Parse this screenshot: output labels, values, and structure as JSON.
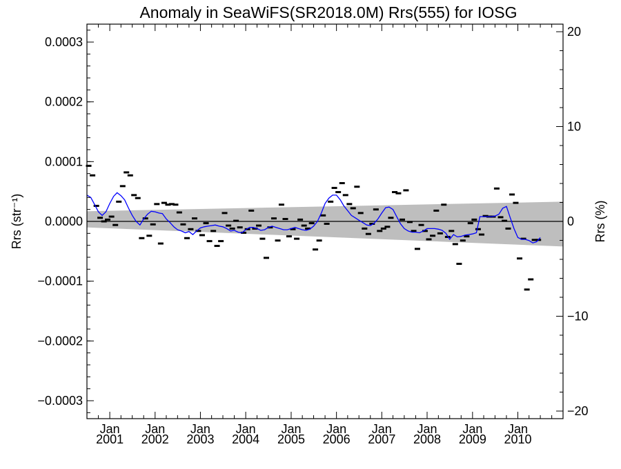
{
  "chart_data": {
    "type": "scatter",
    "title": "Anomaly in SeaWiFS(SR2018.0M) Rrs(555) for IOSG",
    "ylabel_left": "Rrs (str⁻¹)",
    "ylabel_right": "Rrs (%)",
    "xlabel": "",
    "xlim": [
      "2000-07-01",
      "2010-12-31"
    ],
    "ylim_left": [
      -0.00033,
      0.00033
    ],
    "ylim_right": [
      -20.8,
      20.8
    ],
    "x_ticks": [
      {
        "month": "Jan",
        "year": "2001",
        "date": "2001-01-01"
      },
      {
        "month": "Jan",
        "year": "2002",
        "date": "2002-01-01"
      },
      {
        "month": "Jan",
        "year": "2003",
        "date": "2003-01-01"
      },
      {
        "month": "Jan",
        "year": "2004",
        "date": "2004-01-01"
      },
      {
        "month": "Jan",
        "year": "2005",
        "date": "2005-01-01"
      },
      {
        "month": "Jan",
        "year": "2006",
        "date": "2006-01-01"
      },
      {
        "month": "Jan",
        "year": "2007",
        "date": "2007-01-01"
      },
      {
        "month": "Jan",
        "year": "2008",
        "date": "2008-01-01"
      },
      {
        "month": "Jan",
        "year": "2009",
        "date": "2009-01-01"
      },
      {
        "month": "Jan",
        "year": "2010",
        "date": "2010-01-01"
      }
    ],
    "y_ticks_left": [
      {
        "value": 0.0003,
        "label": "0.0003"
      },
      {
        "value": 0.0002,
        "label": "0.0002"
      },
      {
        "value": 0.0001,
        "label": "0.0001"
      },
      {
        "value": 0.0,
        "label": "0.0000"
      },
      {
        "value": -0.0001,
        "label": "−0.0001"
      },
      {
        "value": -0.0002,
        "label": "−0.0002"
      },
      {
        "value": -0.0003,
        "label": "−0.0003"
      }
    ],
    "y_ticks_right": [
      {
        "value": 20,
        "label": "20"
      },
      {
        "value": 10,
        "label": "10"
      },
      {
        "value": 0,
        "label": "0"
      },
      {
        "value": -10,
        "label": "−10"
      },
      {
        "value": -20,
        "label": "−20"
      }
    ],
    "trend_band": {
      "x": [
        "2000-07-01",
        "2010-12-31"
      ],
      "upper": [
        1.7e-05,
        3.3e-05
      ],
      "lower": [
        -1e-05,
        -4.2e-05
      ],
      "color": "#bebebe"
    },
    "zero_line": {
      "value": 0.0,
      "color": "#000000"
    },
    "series": [
      {
        "kind": "monthly_anomaly_markers",
        "color": "#000000",
        "points": [
          [
            "2000-07-15",
            9.3e-05
          ],
          [
            "2000-08-15",
            7.7e-05
          ],
          [
            "2000-09-15",
            2.6e-05
          ],
          [
            "2000-10-15",
            6e-06
          ],
          [
            "2000-11-15",
            0.0
          ],
          [
            "2000-12-15",
            3e-06
          ],
          [
            "2001-01-15",
            8e-06
          ],
          [
            "2001-02-15",
            -6e-06
          ],
          [
            "2001-03-15",
            3.3e-05
          ],
          [
            "2001-04-15",
            5.9e-05
          ],
          [
            "2001-05-15",
            8.2e-05
          ],
          [
            "2001-06-15",
            7.7e-05
          ],
          [
            "2001-07-15",
            4.4e-05
          ],
          [
            "2001-08-15",
            3.9e-05
          ],
          [
            "2001-09-15",
            -2.8e-05
          ],
          [
            "2001-10-15",
            5e-06
          ],
          [
            "2001-11-15",
            -2.4e-05
          ],
          [
            "2001-12-15",
            -5e-06
          ],
          [
            "2002-01-15",
            2.9e-05
          ],
          [
            "2002-02-15",
            -3.7e-05
          ],
          [
            "2002-03-15",
            3.1e-05
          ],
          [
            "2002-04-15",
            2.8e-05
          ],
          [
            "2002-05-15",
            2.9e-05
          ],
          [
            "2002-06-15",
            2.8e-05
          ],
          [
            "2002-07-15",
            1.5e-05
          ],
          [
            "2002-08-15",
            -5e-06
          ],
          [
            "2002-09-15",
            -2.8e-05
          ],
          [
            "2002-10-15",
            -1.3e-05
          ],
          [
            "2002-11-15",
            5e-06
          ],
          [
            "2002-12-15",
            -1.6e-05
          ],
          [
            "2003-01-15",
            -2.3e-05
          ],
          [
            "2003-02-15",
            -3e-06
          ],
          [
            "2003-03-15",
            -3.3e-05
          ],
          [
            "2003-04-15",
            -1.6e-05
          ],
          [
            "2003-05-15",
            -4.1e-05
          ],
          [
            "2003-06-15",
            -3.3e-05
          ],
          [
            "2003-07-15",
            1.4e-05
          ],
          [
            "2003-08-15",
            -7e-06
          ],
          [
            "2003-09-15",
            -1.2e-05
          ],
          [
            "2003-10-15",
            1e-06
          ],
          [
            "2003-11-15",
            -1e-05
          ],
          [
            "2003-12-15",
            -1.9e-05
          ],
          [
            "2004-01-15",
            -1.3e-05
          ],
          [
            "2004-02-15",
            1.8e-05
          ],
          [
            "2004-03-15",
            -1.2e-05
          ],
          [
            "2004-04-15",
            -7e-06
          ],
          [
            "2004-05-15",
            -2.9e-05
          ],
          [
            "2004-06-15",
            -6.1e-05
          ],
          [
            "2004-07-15",
            -1e-05
          ],
          [
            "2004-08-15",
            5e-06
          ],
          [
            "2004-09-15",
            -3.2e-05
          ],
          [
            "2004-10-15",
            2.8e-05
          ],
          [
            "2004-11-15",
            4e-06
          ],
          [
            "2004-12-15",
            -2.5e-05
          ],
          [
            "2005-01-15",
            -1.3e-05
          ],
          [
            "2005-02-15",
            -2.9e-05
          ],
          [
            "2005-03-15",
            3e-06
          ],
          [
            "2005-04-15",
            -7e-06
          ],
          [
            "2005-05-15",
            -1.2e-05
          ],
          [
            "2005-06-15",
            -3e-06
          ],
          [
            "2005-07-15",
            -4.7e-05
          ],
          [
            "2005-08-15",
            -3.2e-05
          ],
          [
            "2005-09-15",
            1e-05
          ],
          [
            "2005-10-15",
            -4e-06
          ],
          [
            "2005-11-15",
            3.3e-05
          ],
          [
            "2005-12-15",
            5.6e-05
          ],
          [
            "2006-01-15",
            4.9e-05
          ],
          [
            "2006-02-15",
            6.4e-05
          ],
          [
            "2006-03-15",
            4.4e-05
          ],
          [
            "2006-04-15",
            2.9e-05
          ],
          [
            "2006-05-15",
            2.2e-05
          ],
          [
            "2006-06-15",
            5.8e-05
          ],
          [
            "2006-07-15",
            1.4e-05
          ],
          [
            "2006-08-15",
            -1.2e-05
          ],
          [
            "2006-09-15",
            -2.1e-05
          ],
          [
            "2006-10-15",
            -4e-06
          ],
          [
            "2006-11-15",
            2e-05
          ],
          [
            "2006-12-15",
            -1.6e-05
          ],
          [
            "2007-01-15",
            -1.2e-05
          ],
          [
            "2007-02-15",
            -9e-06
          ],
          [
            "2007-03-15",
            6e-06
          ],
          [
            "2007-04-15",
            4.9e-05
          ],
          [
            "2007-05-15",
            4.7e-05
          ],
          [
            "2007-06-15",
            3e-06
          ],
          [
            "2007-07-15",
            5.2e-05
          ],
          [
            "2007-08-15",
            -1e-06
          ],
          [
            "2007-09-15",
            -1.6e-05
          ],
          [
            "2007-10-15",
            -4.6e-05
          ],
          [
            "2007-11-15",
            -6e-06
          ],
          [
            "2007-12-15",
            -1.6e-05
          ],
          [
            "2008-01-15",
            -3e-05
          ],
          [
            "2008-02-15",
            -2.4e-05
          ],
          [
            "2008-03-15",
            1.8e-05
          ],
          [
            "2008-04-15",
            -2e-05
          ],
          [
            "2008-05-15",
            2.8e-05
          ],
          [
            "2008-06-15",
            -2.6e-05
          ],
          [
            "2008-07-15",
            -1.6e-05
          ],
          [
            "2008-08-15",
            -3.8e-05
          ],
          [
            "2008-09-15",
            -7.1e-05
          ],
          [
            "2008-10-15",
            -3.2e-05
          ],
          [
            "2008-11-15",
            -2.5e-05
          ],
          [
            "2008-12-15",
            -3e-06
          ],
          [
            "2009-01-15",
            3e-06
          ],
          [
            "2009-02-15",
            -1.3e-05
          ],
          [
            "2009-03-15",
            -2.2e-05
          ],
          [
            "2009-04-15",
            9e-06
          ],
          [
            "2009-05-15",
            8e-06
          ],
          [
            "2009-06-15",
            8e-06
          ],
          [
            "2009-07-15",
            5.5e-05
          ],
          [
            "2009-08-15",
            7e-06
          ],
          [
            "2009-09-15",
            1e-06
          ],
          [
            "2009-10-15",
            -1.2e-05
          ],
          [
            "2009-11-15",
            4.5e-05
          ],
          [
            "2009-12-15",
            3.1e-05
          ],
          [
            "2010-01-15",
            -6.2e-05
          ],
          [
            "2010-02-15",
            -2.9e-05
          ],
          [
            "2010-03-15",
            -0.000114
          ],
          [
            "2010-04-15",
            -9.7e-05
          ],
          [
            "2010-05-15",
            -3.1e-05
          ],
          [
            "2010-06-15",
            -3.1e-05
          ]
        ]
      },
      {
        "kind": "smoothed_anomaly_line",
        "color": "#0000ff",
        "points": [
          [
            "2000-07-01",
            4.4e-05
          ],
          [
            "2000-08-01",
            4e-05
          ],
          [
            "2000-09-01",
            2.8e-05
          ],
          [
            "2000-10-01",
            1.6e-05
          ],
          [
            "2000-11-01",
            1e-05
          ],
          [
            "2000-12-01",
            1.6e-05
          ],
          [
            "2001-01-01",
            3e-05
          ],
          [
            "2001-02-01",
            4.2e-05
          ],
          [
            "2001-03-01",
            4.8e-05
          ],
          [
            "2001-04-01",
            4.3e-05
          ],
          [
            "2001-05-01",
            3.6e-05
          ],
          [
            "2001-06-01",
            2.2e-05
          ],
          [
            "2001-07-01",
            1e-05
          ],
          [
            "2001-08-01",
            0.0
          ],
          [
            "2001-09-01",
            -6e-06
          ],
          [
            "2001-10-01",
            4e-06
          ],
          [
            "2001-11-01",
            1.2e-05
          ],
          [
            "2001-12-01",
            1.7e-05
          ],
          [
            "2002-01-01",
            1.6e-05
          ],
          [
            "2002-02-01",
            1.4e-05
          ],
          [
            "2002-03-01",
            1.3e-05
          ],
          [
            "2002-04-01",
            4e-06
          ],
          [
            "2002-05-01",
            -2e-06
          ],
          [
            "2002-06-01",
            -9e-06
          ],
          [
            "2002-07-01",
            -1.4e-05
          ],
          [
            "2002-08-01",
            -1.6e-05
          ],
          [
            "2002-09-01",
            -1.9e-05
          ],
          [
            "2002-10-01",
            -1.7e-05
          ],
          [
            "2002-11-01",
            -2.2e-05
          ],
          [
            "2002-12-01",
            -1.6e-05
          ],
          [
            "2003-01-01",
            -1.1e-05
          ],
          [
            "2003-02-01",
            -9e-06
          ],
          [
            "2003-03-01",
            -8e-06
          ],
          [
            "2003-04-01",
            -7e-06
          ],
          [
            "2003-05-01",
            -6e-06
          ],
          [
            "2003-06-01",
            -8e-06
          ],
          [
            "2003-07-01",
            -9e-06
          ],
          [
            "2003-08-01",
            -1.2e-05
          ],
          [
            "2003-09-01",
            -1.6e-05
          ],
          [
            "2003-10-01",
            -1.5e-05
          ],
          [
            "2003-11-01",
            -1.8e-05
          ],
          [
            "2003-12-01",
            -1.9e-05
          ],
          [
            "2004-01-01",
            -1.4e-05
          ],
          [
            "2004-02-01",
            -1e-05
          ],
          [
            "2004-03-01",
            -1e-05
          ],
          [
            "2004-04-01",
            -1.2e-05
          ],
          [
            "2004-05-01",
            -1.5e-05
          ],
          [
            "2004-06-01",
            -1.4e-05
          ],
          [
            "2004-07-01",
            -1e-05
          ],
          [
            "2004-08-01",
            -8e-06
          ],
          [
            "2004-09-01",
            -1e-05
          ],
          [
            "2004-10-01",
            -1.2e-05
          ],
          [
            "2004-11-01",
            -1.4e-05
          ],
          [
            "2004-12-01",
            -1.4e-05
          ],
          [
            "2005-01-01",
            -1.2e-05
          ],
          [
            "2005-02-01",
            -1e-05
          ],
          [
            "2005-03-01",
            -1.2e-05
          ],
          [
            "2005-04-01",
            -1.4e-05
          ],
          [
            "2005-05-01",
            -1.5e-05
          ],
          [
            "2005-06-01",
            -1.3e-05
          ],
          [
            "2005-07-01",
            -8e-06
          ],
          [
            "2005-08-01",
            0.0
          ],
          [
            "2005-09-01",
            1.4e-05
          ],
          [
            "2005-10-01",
            3e-05
          ],
          [
            "2005-11-01",
            3.9e-05
          ],
          [
            "2005-12-01",
            4.4e-05
          ],
          [
            "2006-01-01",
            4.4e-05
          ],
          [
            "2006-02-01",
            3.6e-05
          ],
          [
            "2006-03-01",
            2.6e-05
          ],
          [
            "2006-04-01",
            1.8e-05
          ],
          [
            "2006-05-01",
            1e-05
          ],
          [
            "2006-06-01",
            6e-06
          ],
          [
            "2006-07-01",
            2e-06
          ],
          [
            "2006-08-01",
            -2e-06
          ],
          [
            "2006-09-01",
            -6e-06
          ],
          [
            "2006-10-01",
            -7e-06
          ],
          [
            "2006-11-01",
            -3e-06
          ],
          [
            "2006-12-01",
            4e-06
          ],
          [
            "2007-01-01",
            1.4e-05
          ],
          [
            "2007-02-01",
            2.3e-05
          ],
          [
            "2007-03-01",
            2.4e-05
          ],
          [
            "2007-04-01",
            2e-05
          ],
          [
            "2007-05-01",
            8e-06
          ],
          [
            "2007-06-01",
            -4e-06
          ],
          [
            "2007-07-01",
            -1.2e-05
          ],
          [
            "2007-08-01",
            -1.6e-05
          ],
          [
            "2007-09-01",
            -1.8e-05
          ],
          [
            "2007-10-01",
            -1.8e-05
          ],
          [
            "2007-11-01",
            -1.9e-05
          ],
          [
            "2007-12-01",
            -1.6e-05
          ],
          [
            "2008-01-01",
            -1.2e-05
          ],
          [
            "2008-02-01",
            -1.2e-05
          ],
          [
            "2008-03-01",
            -1.2e-05
          ],
          [
            "2008-04-01",
            -1.3e-05
          ],
          [
            "2008-05-01",
            -1.5e-05
          ],
          [
            "2008-06-01",
            -2e-05
          ],
          [
            "2008-07-01",
            -3e-05
          ],
          [
            "2008-08-01",
            -2.2e-05
          ],
          [
            "2008-09-01",
            -2.6e-05
          ],
          [
            "2008-10-01",
            -2.5e-05
          ],
          [
            "2008-11-01",
            -2.3e-05
          ],
          [
            "2008-12-01",
            -2.2e-05
          ],
          [
            "2009-01-01",
            -2.1e-05
          ],
          [
            "2009-02-01",
            -1.9e-05
          ],
          [
            "2009-03-01",
            8e-06
          ],
          [
            "2009-04-01",
            8e-06
          ],
          [
            "2009-05-01",
            8e-06
          ],
          [
            "2009-06-01",
            8e-06
          ],
          [
            "2009-07-01",
            9e-06
          ],
          [
            "2009-08-01",
            1.2e-05
          ],
          [
            "2009-09-01",
            2.2e-05
          ],
          [
            "2009-10-01",
            2.5e-05
          ],
          [
            "2009-11-01",
            6e-06
          ],
          [
            "2009-12-01",
            -1.2e-05
          ],
          [
            "2010-01-01",
            -2.7e-05
          ],
          [
            "2010-02-01",
            -3e-05
          ],
          [
            "2010-03-01",
            -3e-05
          ],
          [
            "2010-04-01",
            -3.2e-05
          ],
          [
            "2010-05-01",
            -3.6e-05
          ],
          [
            "2010-06-01",
            -3.4e-05
          ],
          [
            "2010-07-01",
            -2.7e-05
          ]
        ]
      }
    ],
    "grid": false,
    "legend": "none"
  }
}
